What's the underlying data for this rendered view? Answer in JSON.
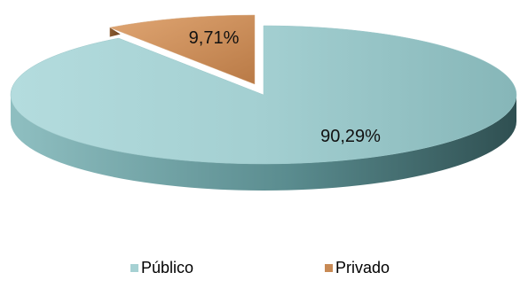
{
  "chart_data": {
    "type": "pie",
    "style": "3d",
    "categories": [
      "Público",
      "Privado"
    ],
    "values": [
      90.29,
      9.71
    ],
    "labels": [
      "90,29%",
      "9,71%"
    ],
    "colors": [
      "#a6d1d3",
      "#c88a55"
    ],
    "legend": {
      "placement": "bottom",
      "items": [
        {
          "label": "Público",
          "color": "#a6d1d3"
        },
        {
          "label": "Privado",
          "color": "#c88a55"
        }
      ]
    }
  }
}
